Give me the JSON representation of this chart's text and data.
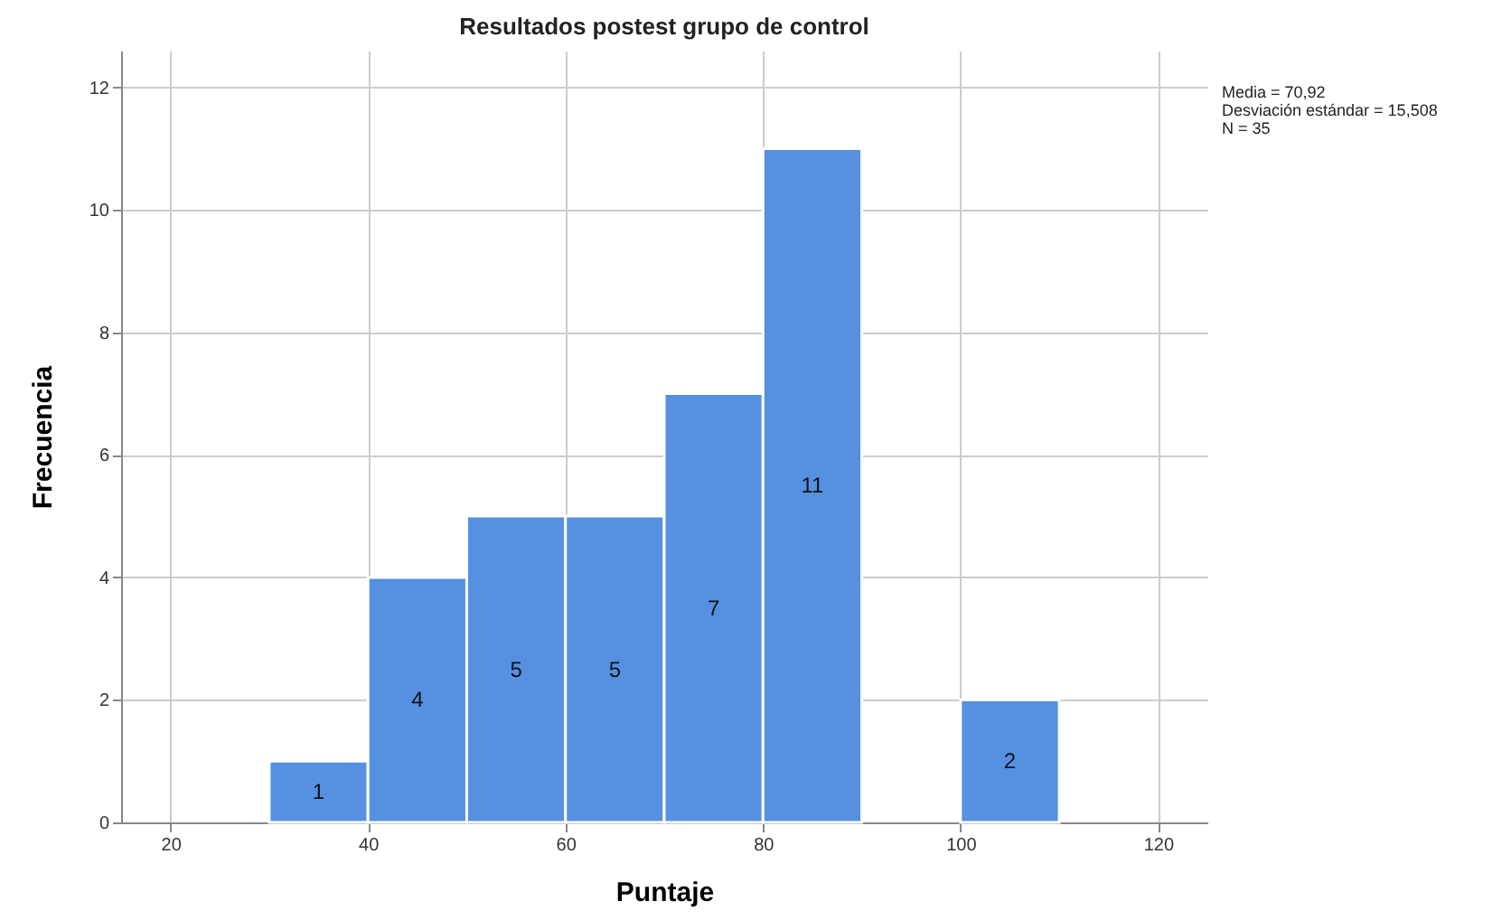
{
  "chart_data": {
    "type": "histogram",
    "title": "Resultados postest grupo de control",
    "xlabel": "Puntaje",
    "ylabel": "Frecuencia",
    "bins": [
      30,
      40,
      50,
      60,
      70,
      80,
      90,
      100,
      110
    ],
    "values": [
      1,
      4,
      5,
      5,
      7,
      11,
      0,
      2
    ],
    "value_labels": [
      "1",
      "4",
      "5",
      "5",
      "7",
      "11",
      null,
      "2"
    ],
    "color": "#5591e0",
    "xlim": [
      15,
      125
    ],
    "xticks": [
      20,
      40,
      60,
      80,
      100,
      120
    ],
    "ylim": [
      0,
      12.6
    ],
    "yticks": [
      0,
      2,
      4,
      6,
      8,
      10,
      12
    ],
    "grid": true,
    "annotations": [
      "Media = 70,92",
      "Desviación estándar = 15,508",
      "N = 35"
    ]
  }
}
